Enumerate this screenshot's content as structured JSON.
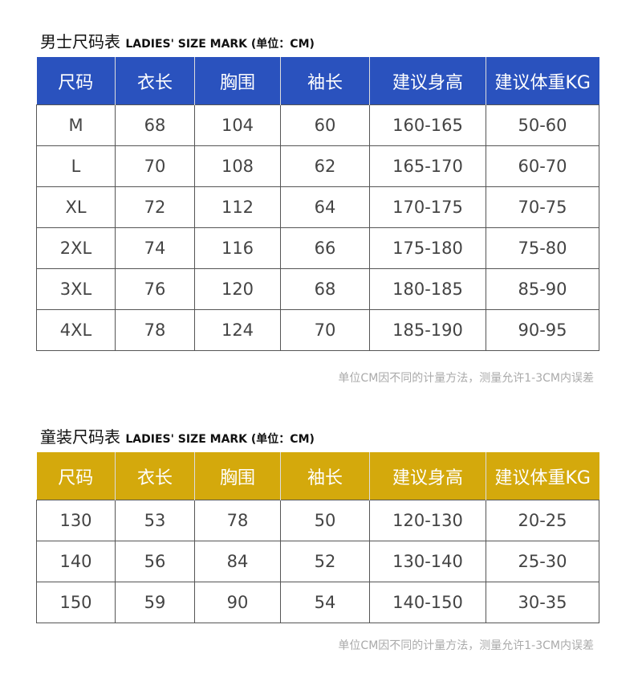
{
  "men": {
    "title": "男士尺码表",
    "subtitle": "LADIES' SIZE MARK (单位：CM)",
    "color": "#2a52be",
    "headers": [
      "尺码",
      "衣长",
      "胸围",
      "袖长",
      "建议身高",
      "建议体重KG"
    ],
    "rows": [
      [
        "M",
        "68",
        "104",
        "60",
        "160-165",
        "50-60"
      ],
      [
        "L",
        "70",
        "108",
        "62",
        "165-170",
        "60-70"
      ],
      [
        "XL",
        "72",
        "112",
        "64",
        "170-175",
        "70-75"
      ],
      [
        "2XL",
        "74",
        "116",
        "66",
        "175-180",
        "75-80"
      ],
      [
        "3XL",
        "76",
        "120",
        "68",
        "180-185",
        "85-90"
      ],
      [
        "4XL",
        "78",
        "124",
        "70",
        "185-190",
        "90-95"
      ]
    ],
    "note": "单位CM因不同的计量方法，测量允许1-3CM内误差"
  },
  "kids": {
    "title": "童装尺码表",
    "subtitle": "LADIES' SIZE MARK (单位：CM)",
    "color": "#d4a90c",
    "headers": [
      "尺码",
      "衣长",
      "胸围",
      "袖长",
      "建议身高",
      "建议体重KG"
    ],
    "rows": [
      [
        "130",
        "53",
        "78",
        "50",
        "120-130",
        "20-25"
      ],
      [
        "140",
        "56",
        "84",
        "52",
        "130-140",
        "25-30"
      ],
      [
        "150",
        "59",
        "90",
        "54",
        "140-150",
        "30-35"
      ]
    ],
    "note": "单位CM因不同的计量方法，测量允许1-3CM内误差"
  }
}
